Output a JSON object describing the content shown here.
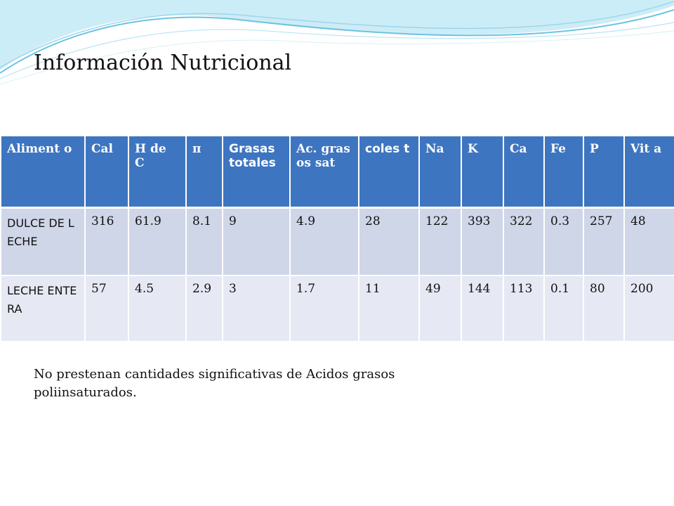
{
  "slide": {
    "title": "Información Nutricional",
    "note": "No prestenan cantidades significativas de Acidos grasos poliinsaturados."
  },
  "table": {
    "headers": [
      "Aliment o",
      "Cal",
      "H de C",
      "π",
      "Grasas totales",
      "Ac. grasos sat",
      "coles t",
      "Na",
      "K",
      "Ca",
      "Fe",
      "P",
      "Vit a"
    ],
    "rows": [
      [
        "DULCE DE LECHE",
        "316",
        "61.9",
        "8.1",
        "9",
        "4.9",
        "28",
        "122",
        "393",
        "322",
        "0.3",
        "257",
        "48"
      ],
      [
        "LECHE ENTERA",
        "57",
        "4.5",
        "2.9",
        "3",
        "1.7",
        "11",
        "49",
        "144",
        "113",
        "0.1",
        "80",
        "200"
      ]
    ]
  },
  "colors": {
    "header_bg": "#3e75c0",
    "row1_bg": "#cfd6e8",
    "row2_bg": "#e6e9f3",
    "wave_accent": "#8fd3ec"
  }
}
